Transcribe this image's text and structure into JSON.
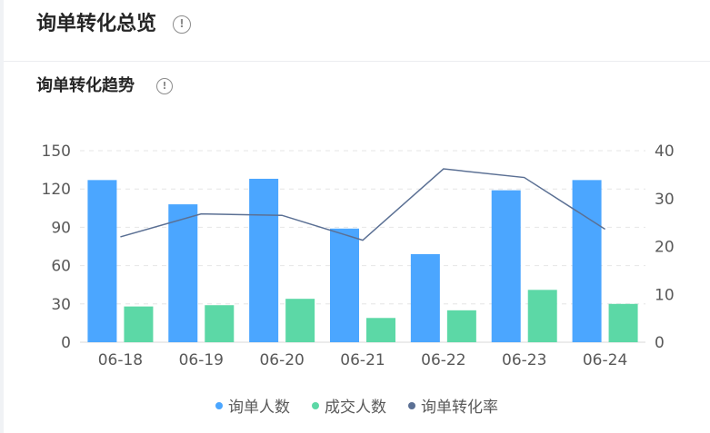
{
  "header": {
    "title": "询单转化总览",
    "info_icon": "info-circle-icon"
  },
  "section": {
    "title": "询单转化趋势",
    "info_icon": "info-circle-icon"
  },
  "chart_data": {
    "type": "bar",
    "categories": [
      "06-18",
      "06-19",
      "06-20",
      "06-21",
      "06-22",
      "06-23",
      "06-24"
    ],
    "series": [
      {
        "name": "询单人数",
        "type": "bar",
        "axis": "left",
        "color": "#4ba6ff",
        "values": [
          127,
          108,
          128,
          89,
          69,
          119,
          127
        ]
      },
      {
        "name": "成交人数",
        "type": "bar",
        "axis": "left",
        "color": "#5cd8a6",
        "values": [
          28,
          29,
          34,
          19,
          25,
          41,
          30
        ]
      },
      {
        "name": "询单转化率",
        "type": "line",
        "axis": "right",
        "color": "#5b7094",
        "values": [
          22,
          26.8,
          26.5,
          21.3,
          36.2,
          34.4,
          23.6
        ]
      }
    ],
    "yleft": {
      "ticks": [
        0,
        30,
        60,
        90,
        120,
        150
      ],
      "lim": [
        0,
        150
      ]
    },
    "yright": {
      "ticks": [
        0,
        10,
        20,
        30,
        40
      ],
      "lim": [
        0,
        40
      ]
    },
    "grid": true,
    "legend_position": "bottom"
  }
}
